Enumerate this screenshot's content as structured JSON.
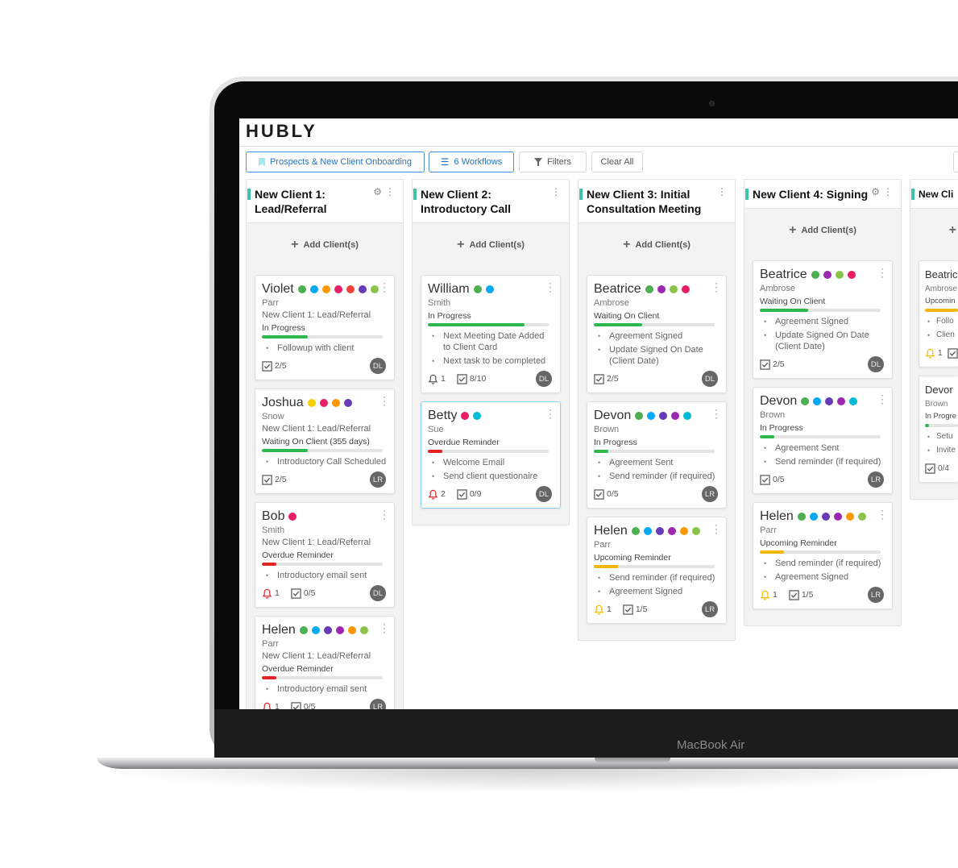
{
  "device": {
    "label": "MacBook Air"
  },
  "app": {
    "logo": "HUBLY"
  },
  "toolbar": {
    "board": "Prospects & New Client Onboarding",
    "workflows": "6 Workflows",
    "filters": "Filters",
    "clear": "Clear All"
  },
  "add_label": "Add Client(s)",
  "columns": [
    {
      "title": "New Client 1: Lead/Referral",
      "gear": true,
      "cards": [
        {
          "first": "Violet",
          "last": "Parr",
          "stage": "New Client 1: Lead/Referral",
          "status": "In Progress",
          "progress": 0.38,
          "bar_color": "#2db84d",
          "dots": [
            "#4caf50",
            "#03a9f4",
            "#ff9800",
            "#e91e63",
            "#f44336",
            "#673ab7",
            "#8bc34a"
          ],
          "tasks": [
            "Followup with client"
          ],
          "reminders": null,
          "checks": "2/5",
          "owner": "DL"
        },
        {
          "first": "Joshua",
          "last": "Snow",
          "stage": "New Client 1: Lead/Referral",
          "status": "Waiting On Client (355 days)",
          "progress": 0.38,
          "bar_color": "#2db84d",
          "dots": [
            "#f5d000",
            "#e91e63",
            "#ff9800",
            "#673ab7"
          ],
          "tasks": [
            "Introductory Call Scheduled"
          ],
          "reminders": null,
          "checks": "2/5",
          "owner": "LR"
        },
        {
          "first": "Bob",
          "last": "Smith",
          "stage": "New Client 1: Lead/Referral",
          "status": "Overdue Reminder",
          "progress": 0.12,
          "bar_color": "#e02424",
          "dots": [
            "#e91e63"
          ],
          "tasks": [
            "Introductory email sent"
          ],
          "reminders": "1",
          "bell_color": "#e02424",
          "checks": "0/5",
          "owner": "DL"
        },
        {
          "first": "Helen",
          "last": "Parr",
          "stage": "New Client 1: Lead/Referral",
          "status": "Overdue Reminder",
          "progress": 0.12,
          "bar_color": "#e02424",
          "dots": [
            "#4caf50",
            "#03a9f4",
            "#673ab7",
            "#9c27b0",
            "#ff9800",
            "#8bc34a"
          ],
          "tasks": [
            "Introductory email sent"
          ],
          "reminders": "1",
          "bell_color": "#e02424",
          "checks": "0/5",
          "owner": "LR"
        }
      ]
    },
    {
      "title": "New Client 2: Introductory Call",
      "gear": false,
      "cards": [
        {
          "first": "William",
          "last": "Smith",
          "stage": null,
          "status": "In Progress",
          "progress": 0.8,
          "bar_color": "#2db84d",
          "dots": [
            "#4caf50",
            "#03a9f4"
          ],
          "tasks": [
            "Next Meeting Date Added to Client Card",
            "Next task to be completed"
          ],
          "reminders": "1",
          "bell_color": "#555555",
          "checks": "8/10",
          "owner": "DL"
        },
        {
          "first": "Betty",
          "last": "Sue",
          "stage": null,
          "status": "Overdue Reminder",
          "progress": 0.12,
          "bar_color": "#e02424",
          "dots": [
            "#e91e63",
            "#00bcd4"
          ],
          "tasks": [
            "Welcome Email",
            "Send client questionaire"
          ],
          "reminders": "2",
          "bell_color": "#e02424",
          "checks": "0/9",
          "owner": "DL",
          "selected": true
        }
      ]
    },
    {
      "title": "New Client 3: Initial Consultation Meeting",
      "gear": false,
      "cards": [
        {
          "first": "Beatrice",
          "last": "Ambrose",
          "stage": null,
          "status": "Waiting On Client",
          "progress": 0.4,
          "bar_color": "#2db84d",
          "dots": [
            "#4caf50",
            "#9c27b0",
            "#8bc34a",
            "#e91e63"
          ],
          "tasks": [
            "Agreement Signed",
            "Update Signed On Date (Client Date)"
          ],
          "reminders": null,
          "checks": "2/5",
          "owner": "DL"
        },
        {
          "first": "Devon",
          "last": "Brown",
          "stage": null,
          "status": "In Progress",
          "progress": 0.12,
          "bar_color": "#2db84d",
          "dots": [
            "#4caf50",
            "#03a9f4",
            "#673ab7",
            "#9c27b0",
            "#00bcd4"
          ],
          "tasks": [
            "Agreement Sent",
            "Send reminder (if required)"
          ],
          "reminders": null,
          "checks": "0/5",
          "owner": "LR"
        },
        {
          "first": "Helen",
          "last": "Parr",
          "stage": null,
          "status": "Upcoming Reminder",
          "progress": 0.2,
          "bar_color": "#f5b800",
          "dots": [
            "#4caf50",
            "#03a9f4",
            "#673ab7",
            "#9c27b0",
            "#ff9800",
            "#8bc34a"
          ],
          "tasks": [
            "Send reminder (if required)",
            "Agreement Signed"
          ],
          "reminders": "1",
          "bell_color": "#f5b800",
          "checks": "1/5",
          "owner": "LR"
        }
      ]
    },
    {
      "title": "New Client 4: Signing",
      "gear": true,
      "cards": [
        {
          "first": "Beatrice",
          "last": "Ambrose",
          "stage": null,
          "status": "Waiting On Client",
          "progress": 0.4,
          "bar_color": "#2db84d",
          "dots": [
            "#4caf50",
            "#9c27b0",
            "#8bc34a",
            "#e91e63"
          ],
          "tasks": [
            "Agreement Signed",
            "Update Signed On Date (Client Date)"
          ],
          "reminders": null,
          "checks": "2/5",
          "owner": "DL"
        },
        {
          "first": "Devon",
          "last": "Brown",
          "stage": null,
          "status": "In Progress",
          "progress": 0.12,
          "bar_color": "#2db84d",
          "dots": [
            "#4caf50",
            "#03a9f4",
            "#673ab7",
            "#9c27b0",
            "#00bcd4"
          ],
          "tasks": [
            "Agreement Sent",
            "Send reminder (if required)"
          ],
          "reminders": null,
          "checks": "0/5",
          "owner": "LR"
        },
        {
          "first": "Helen",
          "last": "Parr",
          "stage": null,
          "status": "Upcoming Reminder",
          "progress": 0.2,
          "bar_color": "#f5b800",
          "dots": [
            "#4caf50",
            "#03a9f4",
            "#673ab7",
            "#9c27b0",
            "#ff9800",
            "#8bc34a"
          ],
          "tasks": [
            "Send reminder (if required)",
            "Agreement Signed"
          ],
          "reminders": "1",
          "bell_color": "#f5b800",
          "checks": "1/5",
          "owner": "LR"
        }
      ]
    },
    {
      "title": "New Cli",
      "gear": false,
      "cards": [
        {
          "first": "Beatric",
          "last": "Ambrose",
          "stage": null,
          "status": "Upcomin",
          "progress": 1,
          "bar_color": "#f5b800",
          "dots": [],
          "tasks": [
            "Follo",
            "Clien"
          ],
          "reminders": "1",
          "bell_color": "#f5b800",
          "checks": "",
          "owner": ""
        },
        {
          "first": "Devor",
          "last": "Brown",
          "stage": null,
          "status": "In Progre",
          "progress": 0.12,
          "bar_color": "#2db84d",
          "dots": [],
          "tasks": [
            "Setu",
            "Invite"
          ],
          "reminders": null,
          "checks": "0/4",
          "owner": ""
        }
      ]
    }
  ]
}
